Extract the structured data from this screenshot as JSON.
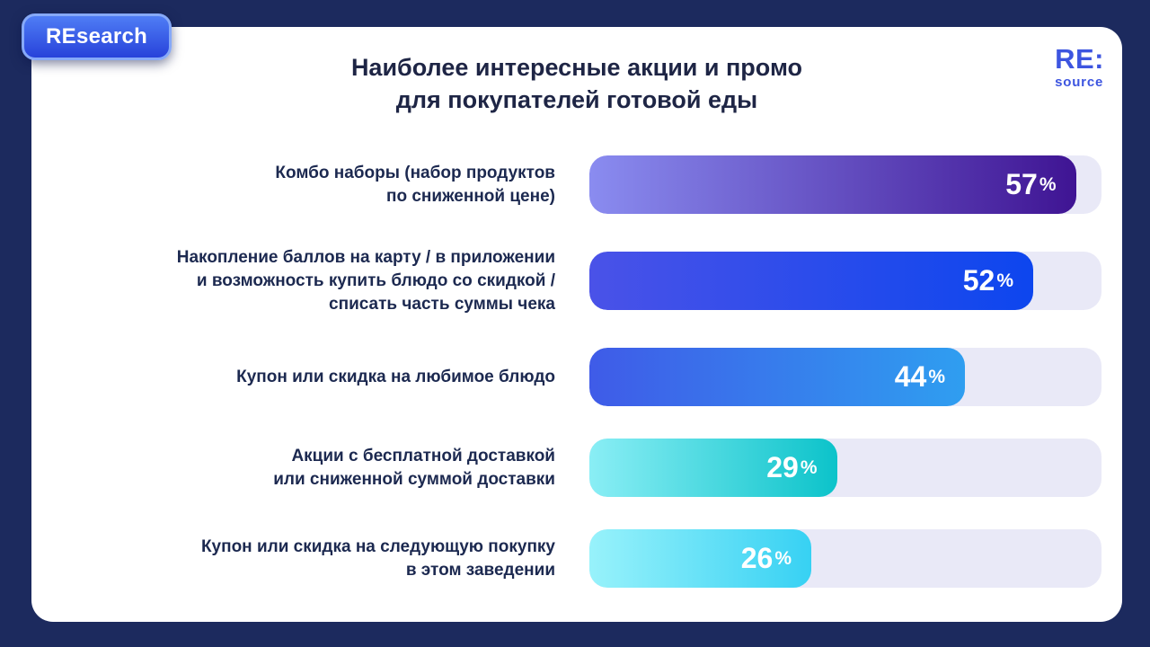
{
  "badge": {
    "label": "REsearch"
  },
  "logo": {
    "top": "RE:",
    "bottom": "source"
  },
  "title": {
    "lines": [
      "Наиболее интересные акции и промо",
      "для покупателей готовой еды"
    ]
  },
  "colors": {
    "frame": "#1c2a5e",
    "card": "#ffffff",
    "title_text": "#1e2545",
    "label_text": "#1c2950",
    "accent_blue": "#3d55e0"
  },
  "chart_data": {
    "type": "bar",
    "orientation": "horizontal",
    "title": "Наиболее интересные акции и промо для покупателей готовой еды",
    "unit": "%",
    "xlim": [
      0,
      60
    ],
    "categories": [
      "Комбо наборы (набор продуктов по сниженной цене)",
      "Накопление баллов на карту / в приложении и возможность купить блюдо со скидкой / списать часть суммы чека",
      "Купон или скидка на любимое блюдо",
      "Акции с бесплатной доставкой или сниженной суммой доставки",
      "Купон или скидка на следующую покупку в этом заведении"
    ],
    "category_lines": [
      [
        "Комбо наборы (набор продуктов",
        "по сниженной цене)"
      ],
      [
        "Накопление баллов на карту / в приложении",
        "и возможность купить блюдо со скидкой /",
        "списать часть суммы чека"
      ],
      [
        "Купон или скидка на любимое блюдо"
      ],
      [
        "Акции с бесплатной доставкой",
        "или сниженной суммой доставки"
      ],
      [
        "Купон или скидка на следующую покупку",
        "в этом заведении"
      ]
    ],
    "values": [
      57,
      52,
      44,
      29,
      26
    ],
    "bar_gradients": [
      [
        "#8a8cf0",
        "#3f1493"
      ],
      [
        "#4a52e8",
        "#0d46ee"
      ],
      [
        "#3f5be8",
        "#2f9ef0"
      ],
      [
        "#8aeef5",
        "#0cc3ca"
      ],
      [
        "#98f2fb",
        "#37d1f3"
      ]
    ],
    "track_color": "#e9e9f7",
    "grid": false,
    "legend": false
  }
}
